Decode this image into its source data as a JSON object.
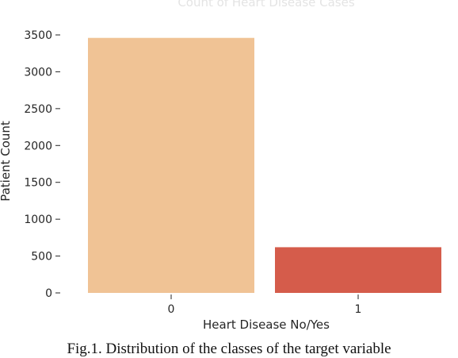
{
  "chart_data": {
    "type": "bar",
    "title": "Count of Heart Disease Cases",
    "categories": [
      "0",
      "1"
    ],
    "values": [
      3460,
      620
    ],
    "colors": [
      "#f0c395",
      "#d55c4b"
    ],
    "xlabel": "Heart Disease No/Yes",
    "ylabel": "Patient Count",
    "ylim": [
      0,
      3600
    ],
    "yticks": [
      0,
      500,
      1000,
      1500,
      2000,
      2500,
      3000,
      3500
    ],
    "grid": false,
    "legend": "none"
  },
  "caption": "Fig.1. Distribution of the classes of the target variable"
}
